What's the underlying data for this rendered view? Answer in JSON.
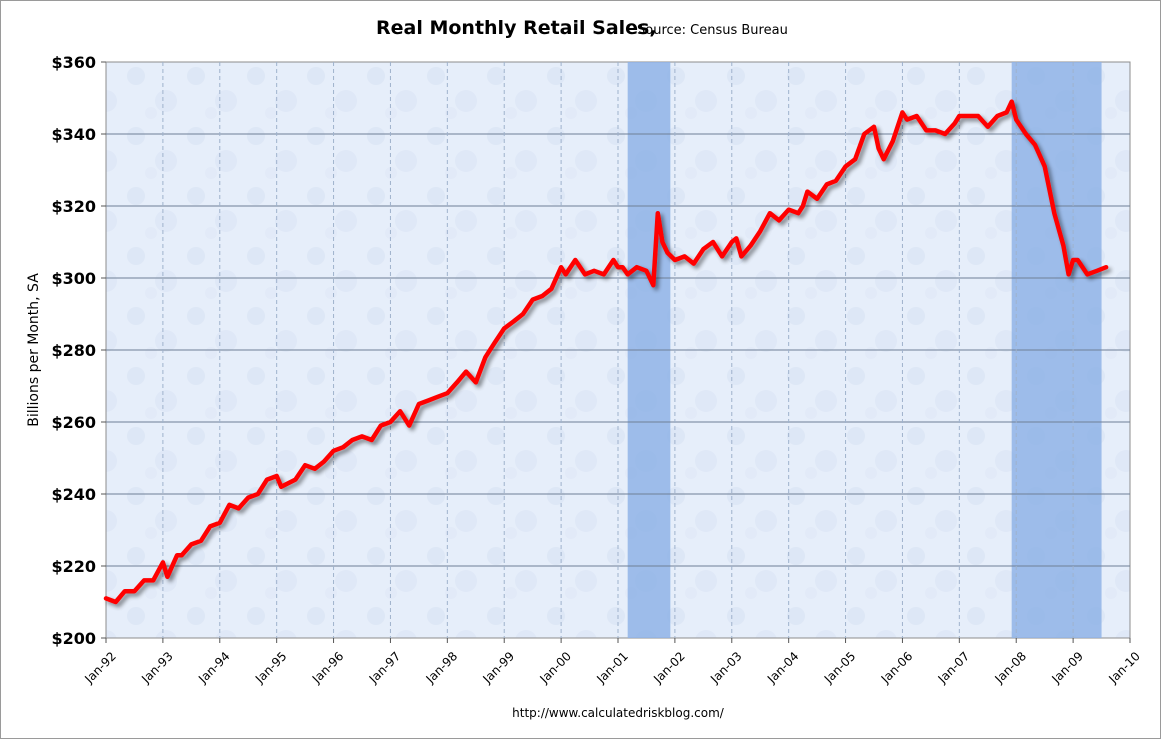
{
  "chart_data": {
    "type": "line",
    "title": "Real Monthly Retail Sales,",
    "subtitle": "Source: Census Bureau",
    "xlabel": "",
    "ylabel": "Billions per Month, SA",
    "ylim": [
      200,
      360
    ],
    "yticks": [
      200,
      220,
      240,
      260,
      280,
      300,
      320,
      340,
      360
    ],
    "ytick_labels": [
      "$200",
      "$220",
      "$240",
      "$260",
      "$280",
      "$300",
      "$320",
      "$340",
      "$360"
    ],
    "xlim": [
      1992.0,
      2010.0
    ],
    "xticks": [
      1992,
      1993,
      1994,
      1995,
      1996,
      1997,
      1998,
      1999,
      2000,
      2001,
      2002,
      2003,
      2004,
      2005,
      2006,
      2007,
      2008,
      2009,
      2010
    ],
    "xtick_labels": [
      "Jan-92",
      "Jan-93",
      "Jan-94",
      "Jan-95",
      "Jan-96",
      "Jan-97",
      "Jan-98",
      "Jan-99",
      "Jan-00",
      "Jan-01",
      "Jan-02",
      "Jan-03",
      "Jan-04",
      "Jan-05",
      "Jan-06",
      "Jan-07",
      "Jan-08",
      "Jan-09",
      "Jan-10"
    ],
    "grid": true,
    "recessions": [
      {
        "start": 2001.17,
        "end": 2001.92
      },
      {
        "start": 2007.92,
        "end": 2009.5
      }
    ],
    "series": [
      {
        "name": "Real Monthly Retail Sales",
        "color": "#ff0000",
        "x": [
          1992.0,
          1992.17,
          1992.33,
          1992.5,
          1992.67,
          1992.83,
          1993.0,
          1993.08,
          1993.25,
          1993.33,
          1993.5,
          1993.67,
          1993.83,
          1994.0,
          1994.17,
          1994.33,
          1994.5,
          1994.67,
          1994.83,
          1995.0,
          1995.08,
          1995.33,
          1995.5,
          1995.67,
          1995.83,
          1996.0,
          1996.17,
          1996.33,
          1996.5,
          1996.67,
          1996.83,
          1997.0,
          1997.17,
          1997.33,
          1997.5,
          1997.67,
          1997.83,
          1998.0,
          1998.17,
          1998.33,
          1998.5,
          1998.67,
          1998.83,
          1999.0,
          1999.17,
          1999.33,
          1999.5,
          1999.67,
          1999.83,
          2000.0,
          2000.08,
          2000.25,
          2000.42,
          2000.58,
          2000.75,
          2000.92,
          2001.0,
          2001.08,
          2001.17,
          2001.33,
          2001.5,
          2001.62,
          2001.7,
          2001.78,
          2001.87,
          2002.0,
          2002.17,
          2002.33,
          2002.5,
          2002.67,
          2002.83,
          2003.0,
          2003.08,
          2003.17,
          2003.33,
          2003.5,
          2003.67,
          2003.83,
          2004.0,
          2004.17,
          2004.25,
          2004.33,
          2004.5,
          2004.67,
          2004.83,
          2005.0,
          2005.17,
          2005.33,
          2005.5,
          2005.58,
          2005.67,
          2005.83,
          2006.0,
          2006.08,
          2006.25,
          2006.42,
          2006.58,
          2006.75,
          2006.92,
          2007.0,
          2007.17,
          2007.33,
          2007.5,
          2007.67,
          2007.83,
          2007.92,
          2008.0,
          2008.17,
          2008.33,
          2008.5,
          2008.67,
          2008.83,
          2008.92,
          2009.0,
          2009.08,
          2009.25,
          2009.42,
          2009.58
        ],
        "values": [
          211,
          210,
          213,
          213,
          216,
          216,
          221,
          217,
          223,
          223,
          226,
          227,
          231,
          232,
          237,
          236,
          239,
          240,
          244,
          245,
          242,
          244,
          248,
          247,
          249,
          252,
          253,
          255,
          256,
          255,
          259,
          260,
          263,
          259,
          265,
          266,
          267,
          268,
          271,
          274,
          271,
          278,
          282,
          286,
          288,
          290,
          294,
          295,
          297,
          303,
          301,
          305,
          301,
          302,
          301,
          305,
          303,
          303,
          301,
          303,
          302,
          298,
          318,
          310,
          307,
          305,
          306,
          304,
          308,
          310,
          306,
          310,
          311,
          306,
          309,
          313,
          318,
          316,
          319,
          318,
          320,
          324,
          322,
          326,
          327,
          331,
          333,
          340,
          342,
          336,
          333,
          338,
          346,
          344,
          345,
          341,
          341,
          340,
          343,
          345,
          345,
          345,
          342,
          345,
          346,
          349,
          344,
          340,
          337,
          331,
          318,
          309,
          301,
          305,
          305,
          301,
          302,
          303
        ]
      }
    ],
    "source_text": "http://www.calculatedriskblog.com/"
  }
}
